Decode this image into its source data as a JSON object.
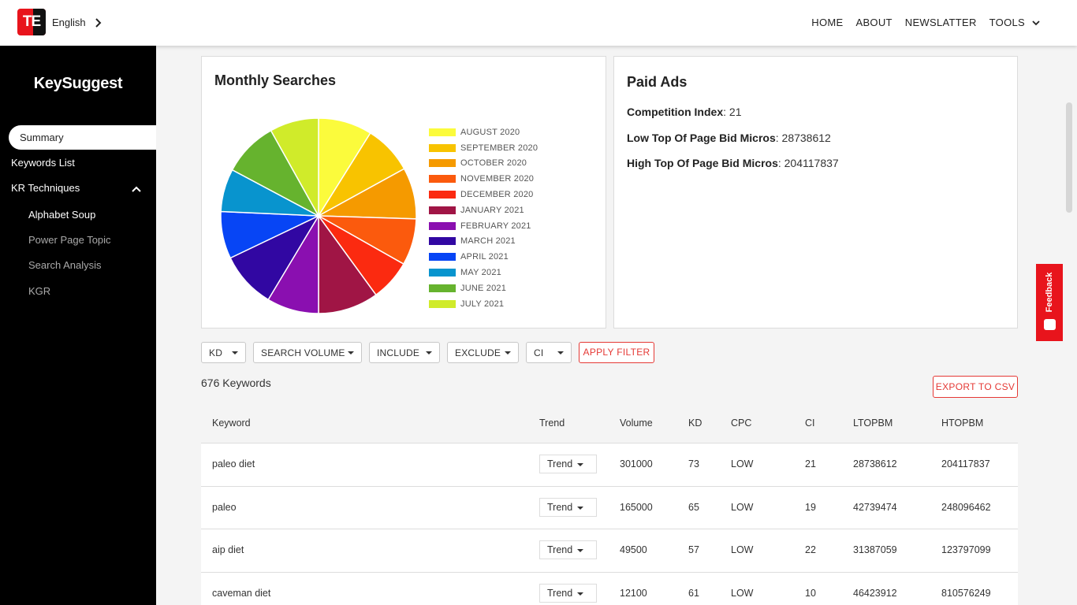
{
  "header": {
    "logo_text": "TE",
    "language": "English",
    "nav": [
      "HOME",
      "ABOUT",
      "NEWSLATTER",
      "TOOLS"
    ]
  },
  "sidebar": {
    "brand": "KeySuggest",
    "summary": "Summary",
    "keywords_list": "Keywords List",
    "kr_techniques": "KR Techniques",
    "sub_items": [
      "Alphabet Soup",
      "Power Page Topic",
      "Search Analysis",
      "KGR"
    ]
  },
  "monthly": {
    "title": "Monthly Searches"
  },
  "chart_data": {
    "type": "pie",
    "title": "Monthly Searches",
    "categories": [
      "AUGUST 2020",
      "SEPTEMBER 2020",
      "OCTOBER 2020",
      "NOVEMBER 2020",
      "DECEMBER 2020",
      "JANUARY 2021",
      "FEBRUARY 2021",
      "MARCH 2021",
      "APRIL 2021",
      "MAY 2021",
      "JUNE 2021",
      "JULY 2021"
    ],
    "values": [
      8.9,
      8.1,
      8.5,
      7.7,
      6.8,
      10.0,
      8.6,
      9.3,
      7.8,
      7.1,
      9.1,
      8.1
    ],
    "colors": [
      "#fbfb3c",
      "#f8c300",
      "#f59a00",
      "#fb5a0d",
      "#fb2a10",
      "#a01545",
      "#8a0fb0",
      "#3107a2",
      "#0745f5",
      "#0894ce",
      "#66b32e",
      "#d0eb2a"
    ],
    "legend": "right"
  },
  "paid_ads": {
    "title": "Paid Ads",
    "competition_label": "Competition Index",
    "competition_value": ": 21",
    "low_label": "Low Top Of Page Bid Micros",
    "low_value": ": 28738612",
    "high_label": "High Top Of Page Bid Micros",
    "high_value": ": 204117837"
  },
  "filters": {
    "kd": "KD",
    "search_volume": "SEARCH VOLUME",
    "include": "INCLUDE",
    "exclude": "EXCLUDE",
    "ci": "CI",
    "apply": "APPLY FILTER"
  },
  "results": {
    "count": "676 Keywords",
    "export": "EXPORT TO CSV"
  },
  "table": {
    "headers": [
      "Keyword",
      "Trend",
      "Volume",
      "KD",
      "CPC",
      "CI",
      "LTOPBM",
      "HTOPBM"
    ],
    "rows": [
      {
        "keyword": "paleo diet",
        "trend": "Trend",
        "volume": "301000",
        "kd": "73",
        "cpc": "LOW",
        "ci": "21",
        "ltopbm": "28738612",
        "htopbm": "204117837"
      },
      {
        "keyword": "paleo",
        "trend": "Trend",
        "volume": "165000",
        "kd": "65",
        "cpc": "LOW",
        "ci": "19",
        "ltopbm": "42739474",
        "htopbm": "248096462"
      },
      {
        "keyword": "aip diet",
        "trend": "Trend",
        "volume": "49500",
        "kd": "57",
        "cpc": "LOW",
        "ci": "22",
        "ltopbm": "31387059",
        "htopbm": "123797099"
      },
      {
        "keyword": "caveman diet",
        "trend": "Trend",
        "volume": "12100",
        "kd": "61",
        "cpc": "LOW",
        "ci": "10",
        "ltopbm": "46423912",
        "htopbm": "810576249"
      }
    ]
  },
  "feedback": {
    "label": "Feedback"
  }
}
